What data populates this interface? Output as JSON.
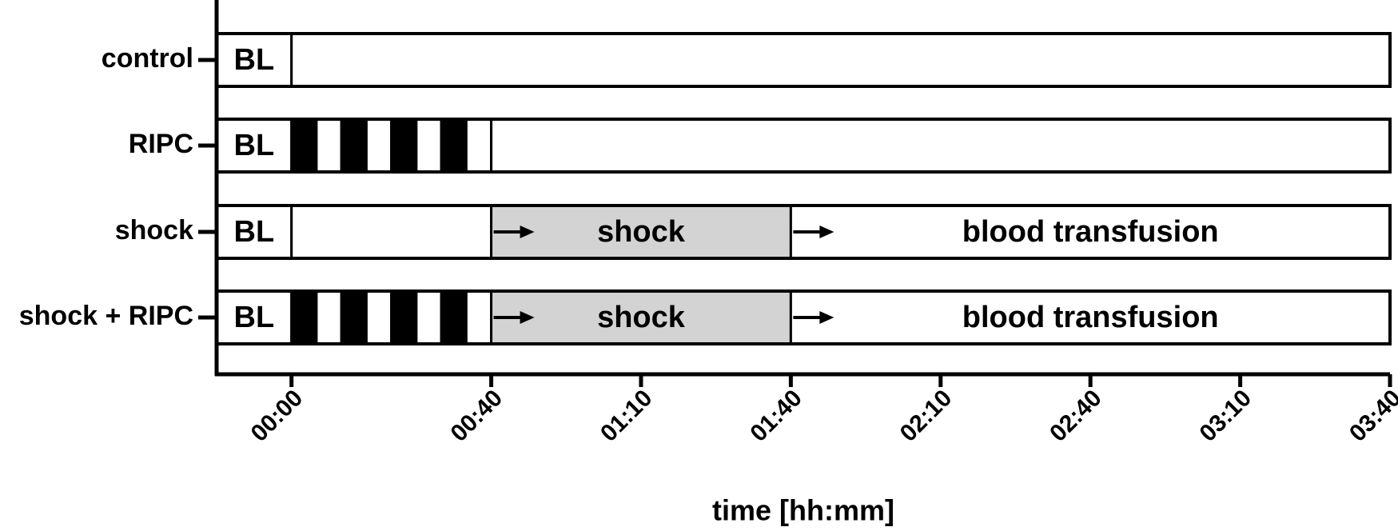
{
  "chart_data": {
    "type": "timeline",
    "x_label": "time [hh:mm]",
    "xlim": [
      -15,
      220
    ],
    "xticks": [
      {
        "value": 0,
        "label": "00:00"
      },
      {
        "value": 40,
        "label": "00:40"
      },
      {
        "value": 70,
        "label": "01:10"
      },
      {
        "value": 100,
        "label": "01:40"
      },
      {
        "value": 130,
        "label": "02:10"
      },
      {
        "value": 160,
        "label": "02:40"
      },
      {
        "value": 190,
        "label": "03:10"
      },
      {
        "value": 220,
        "label": "03:40"
      }
    ],
    "categories": [
      "control",
      "RIPC",
      "shock",
      "shock + RIPC"
    ],
    "rows": [
      {
        "segments": [
          {
            "start": -15,
            "end": 0,
            "label": "BL",
            "color": "#ffffff"
          },
          {
            "start": 0,
            "end": 220,
            "color": "#ffffff"
          }
        ]
      },
      {
        "segments": [
          {
            "start": -15,
            "end": 0,
            "label": "BL",
            "color": "#ffffff"
          },
          {
            "start": 0,
            "end": 5,
            "color": "#000000"
          },
          {
            "start": 5,
            "end": 10,
            "color": "#ffffff"
          },
          {
            "start": 10,
            "end": 15,
            "color": "#000000"
          },
          {
            "start": 15,
            "end": 20,
            "color": "#ffffff"
          },
          {
            "start": 20,
            "end": 25,
            "color": "#000000"
          },
          {
            "start": 25,
            "end": 30,
            "color": "#ffffff"
          },
          {
            "start": 30,
            "end": 35,
            "color": "#000000"
          },
          {
            "start": 35,
            "end": 40,
            "color": "#ffffff"
          },
          {
            "start": 40,
            "end": 220,
            "color": "#ffffff"
          }
        ]
      },
      {
        "segments": [
          {
            "start": -15,
            "end": 0,
            "label": "BL",
            "color": "#ffffff"
          },
          {
            "start": 0,
            "end": 40,
            "color": "#ffffff"
          },
          {
            "start": 40,
            "end": 100,
            "label": "shock",
            "color": "#d3d3d3",
            "arrow": true
          },
          {
            "start": 100,
            "end": 220,
            "label": "blood transfusion",
            "color": "#ffffff",
            "arrow": true
          }
        ]
      },
      {
        "segments": [
          {
            "start": -15,
            "end": 0,
            "label": "BL",
            "color": "#ffffff"
          },
          {
            "start": 0,
            "end": 5,
            "color": "#000000"
          },
          {
            "start": 5,
            "end": 10,
            "color": "#ffffff"
          },
          {
            "start": 10,
            "end": 15,
            "color": "#000000"
          },
          {
            "start": 15,
            "end": 20,
            "color": "#ffffff"
          },
          {
            "start": 20,
            "end": 25,
            "color": "#000000"
          },
          {
            "start": 25,
            "end": 30,
            "color": "#ffffff"
          },
          {
            "start": 30,
            "end": 35,
            "color": "#000000"
          },
          {
            "start": 35,
            "end": 40,
            "color": "#ffffff"
          },
          {
            "start": 40,
            "end": 100,
            "label": "shock",
            "color": "#d3d3d3",
            "arrow": true
          },
          {
            "start": 100,
            "end": 220,
            "label": "blood transfusion",
            "color": "#ffffff",
            "arrow": true
          }
        ]
      }
    ]
  }
}
